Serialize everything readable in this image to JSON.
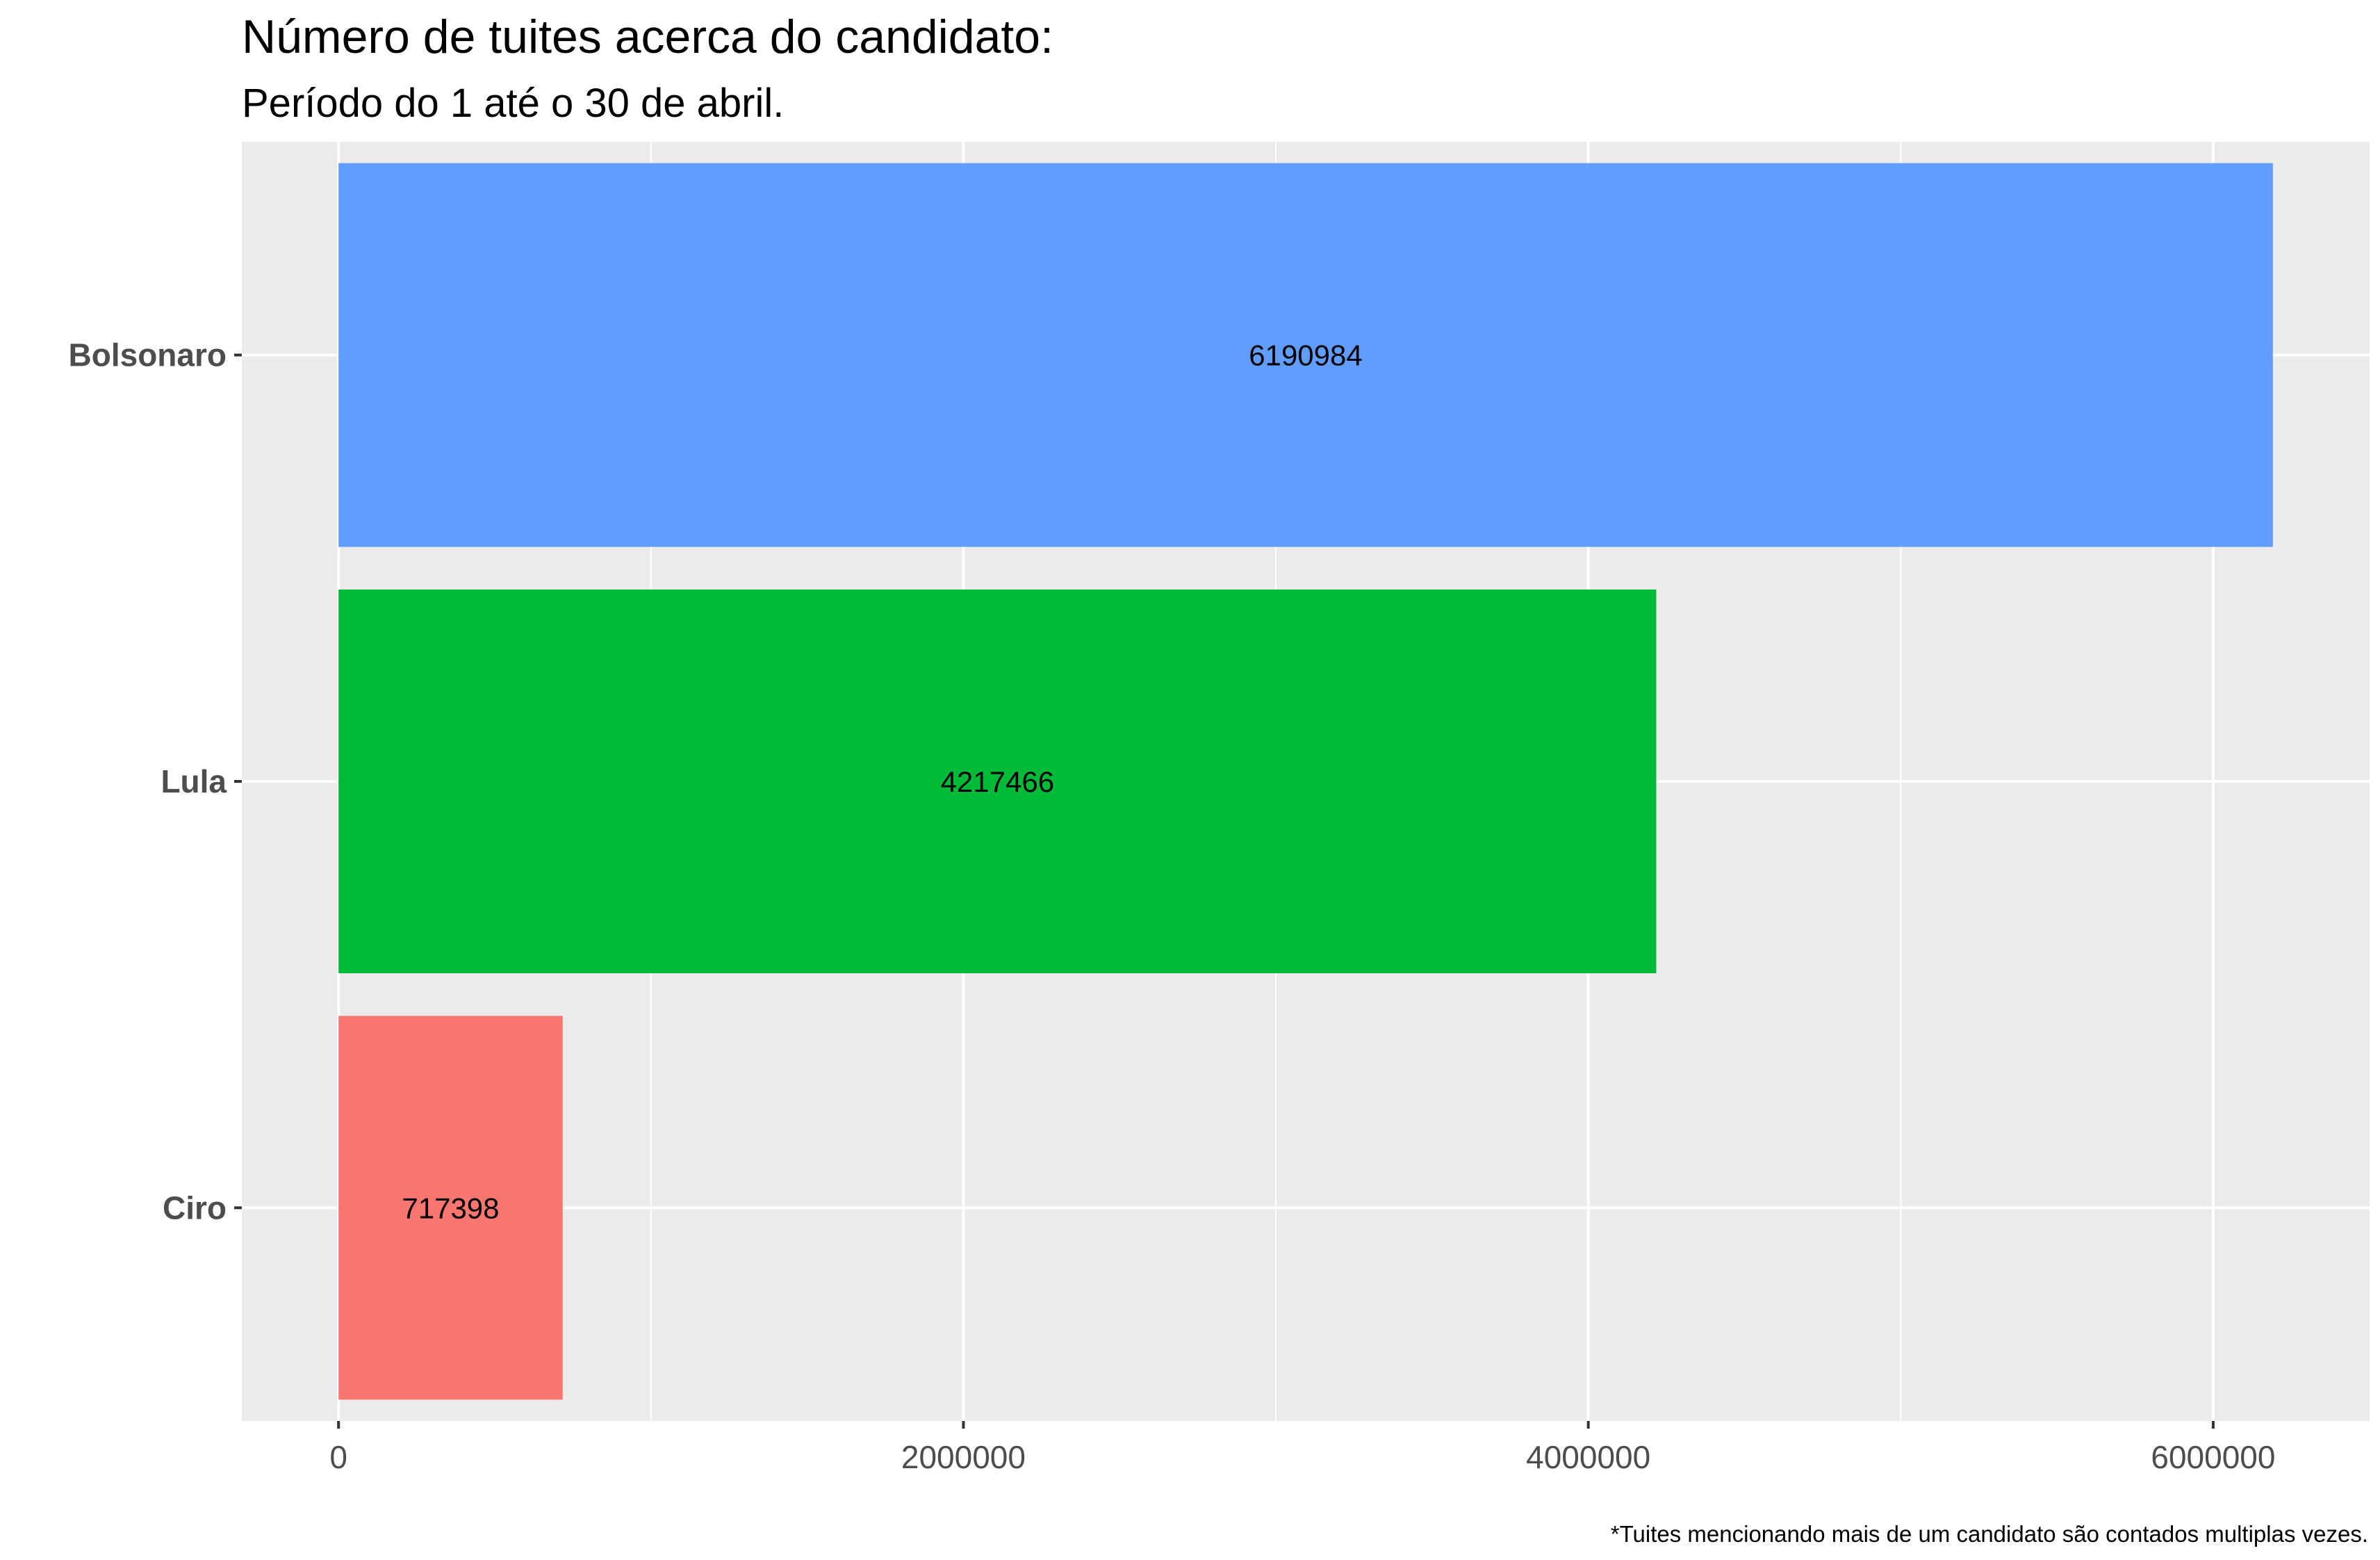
{
  "chart_data": {
    "type": "bar",
    "orientation": "horizontal",
    "title": "Número de tuites acerca do candidato:",
    "subtitle": "Período do 1 até o 30 de abril.",
    "caption": "*Tuites mencionando mais de um candidato são contados multiplas vezes.",
    "categories": [
      "Bolsonaro",
      "Lula",
      "Ciro"
    ],
    "values": [
      6190984,
      4217466,
      717398
    ],
    "data_labels": [
      "6190984",
      "4217466",
      "717398"
    ],
    "colors": [
      "#619CFF",
      "#00BA38",
      "#F8766D"
    ],
    "xlim": [
      -309549,
      6500533
    ],
    "x_ticks": [
      0,
      2000000,
      4000000,
      6000000
    ],
    "x_tick_labels": [
      "0",
      "2000000",
      "4000000",
      "6000000"
    ],
    "x_minor_ticks": [
      1000000,
      3000000,
      5000000
    ],
    "xlabel": "",
    "ylabel": "",
    "grid": true,
    "legend": "none",
    "panel_background": "#EBEBEB",
    "grid_color": "#FFFFFF"
  }
}
